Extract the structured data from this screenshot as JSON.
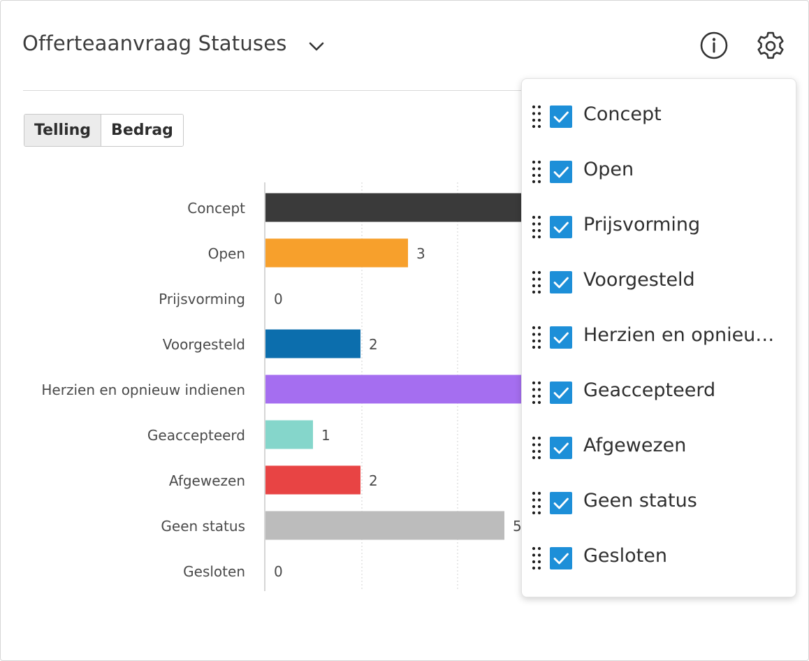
{
  "header": {
    "title": "Offerteaanvraag Statuses",
    "dropdown_icon": "chevron-down-icon",
    "info_icon": "info-circle-icon",
    "settings_icon": "gear-icon"
  },
  "toggle": {
    "options": [
      "Telling",
      "Bedrag"
    ],
    "selected": "Telling"
  },
  "chart_data": {
    "type": "bar",
    "orientation": "horizontal",
    "categories": [
      "Concept",
      "Open",
      "Prijsvorming",
      "Voorgesteld",
      "Herzien en opnieuw indienen",
      "Geaccepteerd",
      "Afgewezen",
      "Geen status",
      "Gesloten"
    ],
    "values": [
      null,
      3,
      0,
      2,
      null,
      1,
      2,
      5,
      0
    ],
    "value_labels": [
      "",
      "3",
      "0",
      "2",
      "",
      "1",
      "2",
      "5",
      "0"
    ],
    "colors": [
      "#3a3a3a",
      "#f7a02c",
      "#3a3a3a",
      "#0c6ead",
      "#a56ef0",
      "#85d6cb",
      "#e84444",
      "#bcbcbc",
      "#3a3a3a"
    ],
    "grid": true,
    "note": "Concept and Herzien en opnieuw indienen bars extend beneath the open panel; their values are hidden"
  },
  "settings_panel": {
    "items": [
      {
        "label": "Concept",
        "checked": true
      },
      {
        "label": "Open",
        "checked": true
      },
      {
        "label": "Prijsvorming",
        "checked": true
      },
      {
        "label": "Voorgesteld",
        "checked": true
      },
      {
        "label": "Herzien en opnieuw indienen",
        "checked": true
      },
      {
        "label": "Geaccepteerd",
        "checked": true
      },
      {
        "label": "Afgewezen",
        "checked": true
      },
      {
        "label": "Geen status",
        "checked": true
      },
      {
        "label": "Gesloten",
        "checked": true
      }
    ],
    "check_color": "#1d8fd8"
  }
}
